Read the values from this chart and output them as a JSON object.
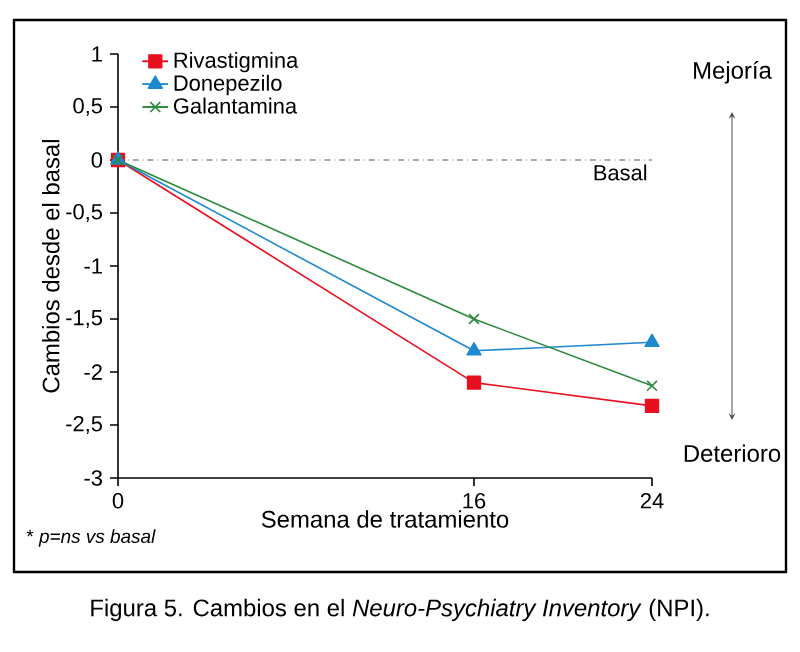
{
  "chart_data": {
    "type": "line",
    "xlabel": "Semana de tratamiento",
    "ylabel": "Cambios desde el basal",
    "x": [
      0,
      16,
      24
    ],
    "series": [
      {
        "name": "Rivastigmina",
        "color": "#e8101f",
        "marker": "square",
        "values": [
          0,
          -2.1,
          -2.32
        ]
      },
      {
        "name": "Donepezilo",
        "color": "#1e88d0",
        "marker": "triangle",
        "values": [
          0,
          -1.8,
          -1.72
        ]
      },
      {
        "name": "Galantamina",
        "color": "#2a8a3a",
        "marker": "cross",
        "values": [
          0,
          -1.5,
          -2.13
        ]
      }
    ],
    "xlim": [
      0,
      24
    ],
    "xticks": [
      0,
      16,
      24
    ],
    "ylim": [
      -3,
      1
    ],
    "yticks": [
      1,
      {
        "value": 0.5,
        "label": "0,5"
      },
      0,
      {
        "value": -0.5,
        "label": "-0,5"
      },
      -1,
      {
        "value": -1.5,
        "label": "-1,5"
      },
      -2,
      {
        "value": -2.5,
        "label": "-2,5"
      },
      -3
    ],
    "ref_lines": [
      {
        "axis": "y",
        "value": 0,
        "label": "Basal",
        "color": "#555555",
        "line_style": "dashdotted"
      }
    ],
    "legend": "top left",
    "grid": false,
    "annotations": [
      "* *p=ns vs basal*",
      "Figura 5. Cambios en el *Neuro-Psychiatry Inventory* (NPI).",
      "Mejoría",
      "Deterioro"
    ]
  }
}
